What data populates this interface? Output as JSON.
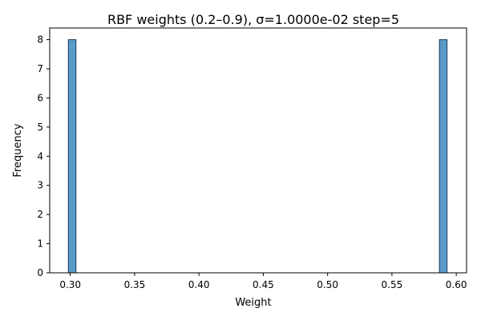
{
  "chart_data": {
    "type": "bar",
    "subtype": "histogram",
    "title": "RBF weights (0.2–0.9), σ=1.0000e-02 step=5",
    "xlabel": "Weight",
    "ylabel": "Frequency",
    "xlim": [
      0.284,
      0.608
    ],
    "ylim": [
      0,
      8.4
    ],
    "bin_width": 0.0059,
    "bins": [
      {
        "x0": 0.2985,
        "x1": 0.3044,
        "count": 8
      },
      {
        "x0": 0.5869,
        "x1": 0.5928,
        "count": 8
      }
    ],
    "xticks": [
      {
        "value": 0.3,
        "label": "0.30"
      },
      {
        "value": 0.35,
        "label": "0.35"
      },
      {
        "value": 0.4,
        "label": "0.40"
      },
      {
        "value": 0.45,
        "label": "0.45"
      },
      {
        "value": 0.5,
        "label": "0.50"
      },
      {
        "value": 0.55,
        "label": "0.55"
      },
      {
        "value": 0.6,
        "label": "0.60"
      }
    ],
    "yticks": [
      {
        "value": 0,
        "label": "0"
      },
      {
        "value": 1,
        "label": "1"
      },
      {
        "value": 2,
        "label": "2"
      },
      {
        "value": 3,
        "label": "3"
      },
      {
        "value": 4,
        "label": "4"
      },
      {
        "value": 5,
        "label": "5"
      },
      {
        "value": 6,
        "label": "6"
      },
      {
        "value": 7,
        "label": "7"
      },
      {
        "value": 8,
        "label": "8"
      }
    ],
    "grid": false,
    "bar_color": "#5b9bc9",
    "bar_edge_color": "#1a3a5a"
  }
}
